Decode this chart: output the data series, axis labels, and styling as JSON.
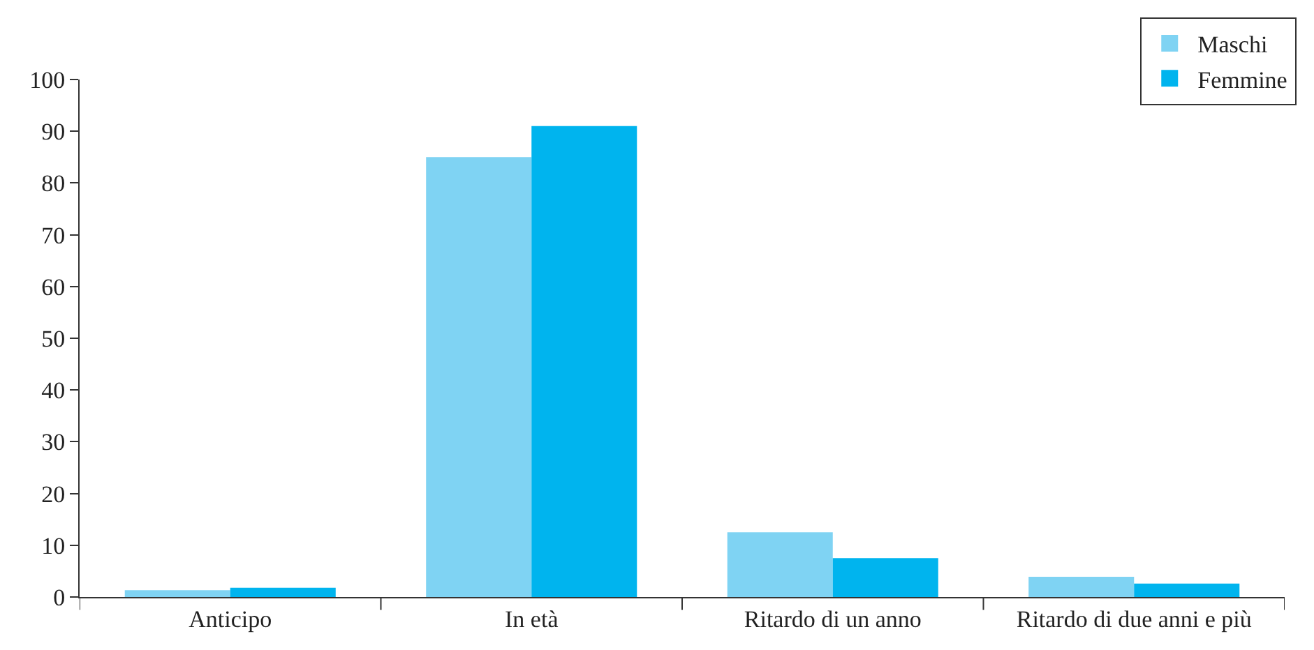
{
  "chart_data": {
    "type": "bar",
    "categories": [
      "Anticipo",
      "In età",
      "Ritardo di un anno",
      "Ritardo di due anni e più"
    ],
    "series": [
      {
        "name": "Maschi",
        "color": "#7fd3f3",
        "values": [
          1.3,
          85,
          12.5,
          3.9
        ]
      },
      {
        "name": "Femmine",
        "color": "#00b4ee",
        "values": [
          1.8,
          91,
          7.5,
          2.6
        ]
      }
    ],
    "ylim": [
      0,
      100
    ],
    "yticks": [
      0,
      10,
      20,
      30,
      40,
      50,
      60,
      70,
      80,
      90,
      100
    ],
    "grid": false,
    "legend": "top right"
  }
}
